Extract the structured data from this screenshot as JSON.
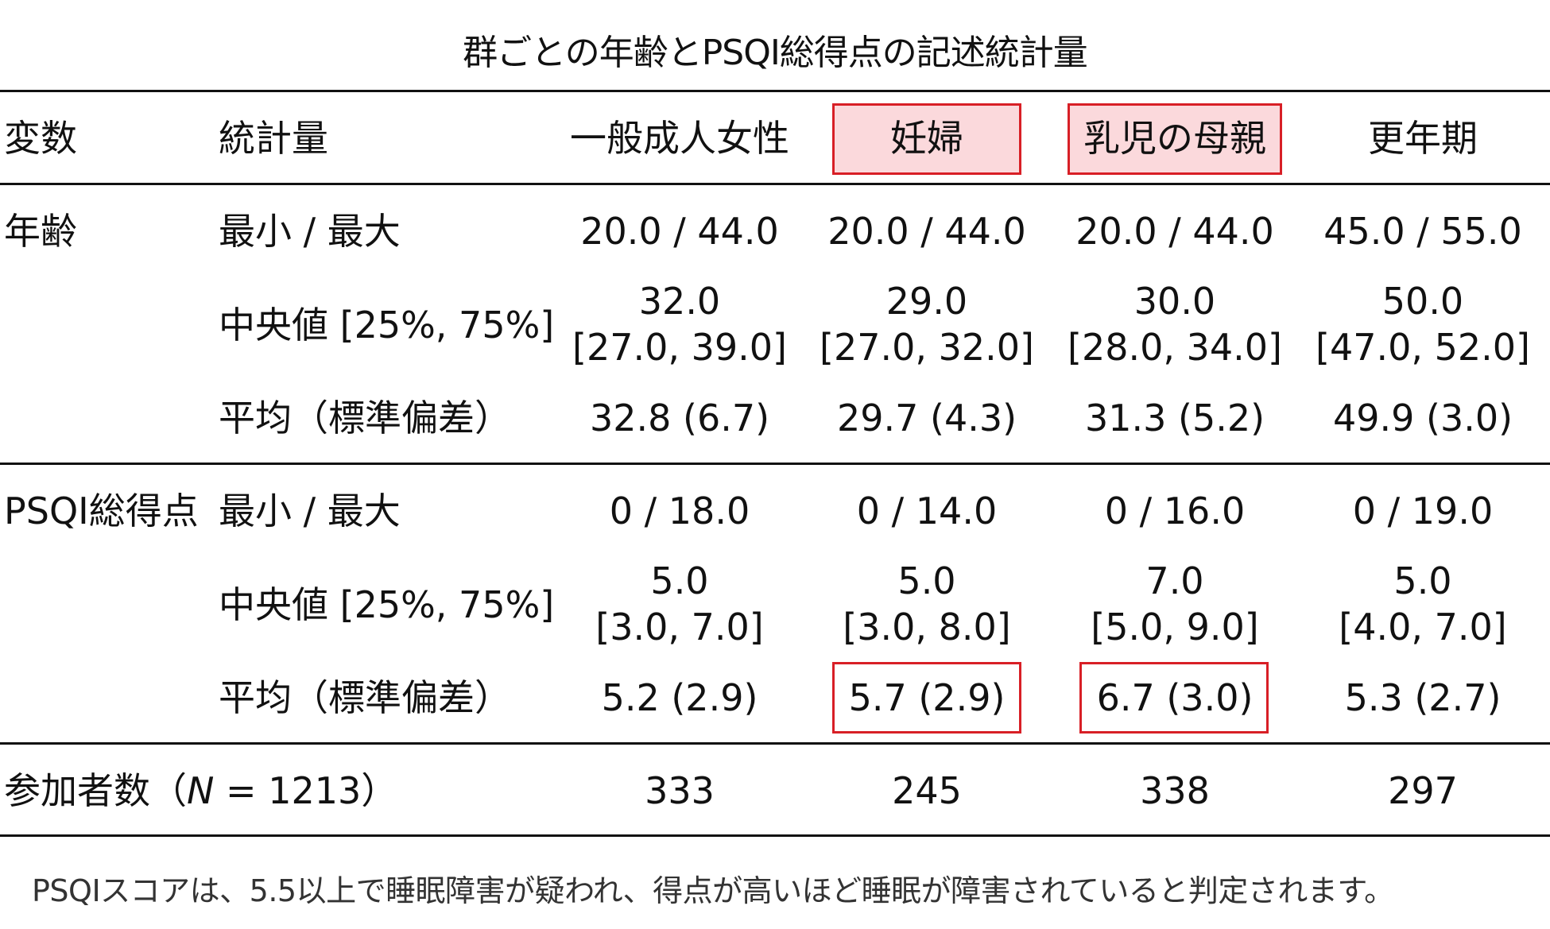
{
  "title": "群ごとの年齢とPSQI総得点の記述統計量",
  "headers": {
    "variable": "変数",
    "stat": "統計量",
    "groups": [
      "一般成人女性",
      "妊婦",
      "乳児の母親",
      "更年期"
    ]
  },
  "highlighted_groups": [
    "妊婦",
    "乳児の母親"
  ],
  "age": {
    "label": "年齢",
    "minmax_label": "最小 / 最大",
    "median_label": "中央値 [25%, 75%]",
    "mean_label": "平均（標準偏差）",
    "minmax": [
      "20.0 / 44.0",
      "20.0 / 44.0",
      "20.0 / 44.0",
      "45.0 / 55.0"
    ],
    "median": [
      "32.0",
      "29.0",
      "30.0",
      "50.0"
    ],
    "iqr": [
      "[27.0, 39.0]",
      "[27.0, 32.0]",
      "[28.0, 34.0]",
      "[47.0, 52.0]"
    ],
    "mean": [
      "32.8 (6.7)",
      "29.7 (4.3)",
      "31.3 (5.2)",
      "49.9 (3.0)"
    ]
  },
  "psqi": {
    "label": "PSQI総得点",
    "minmax_label": "最小 / 最大",
    "median_label": "中央値 [25%, 75%]",
    "mean_label": "平均（標準偏差）",
    "minmax": [
      "0 / 18.0",
      "0 / 14.0",
      "0 / 16.0",
      "0 / 19.0"
    ],
    "median": [
      "5.0",
      "5.0",
      "7.0",
      "5.0"
    ],
    "iqr": [
      "[3.0, 7.0]",
      "[3.0, 8.0]",
      "[5.0, 9.0]",
      "[4.0, 7.0]"
    ],
    "mean": [
      "5.2 (2.9)",
      "5.7 (2.9)",
      "6.7 (3.0)",
      "5.3 (2.7)"
    ]
  },
  "participants": {
    "label_prefix": "参加者数（",
    "label_n": "N",
    "label_suffix": " = 1213）",
    "counts": [
      "333",
      "245",
      "338",
      "297"
    ]
  },
  "footnote": "PSQIスコアは、5.5以上で睡眠障害が疑われ、得点が高いほど睡眠が障害されていると判定されます。",
  "colors": {
    "highlight_border": "#d81f26",
    "highlight_fill": "#fbd9dc",
    "rule": "#111111"
  }
}
